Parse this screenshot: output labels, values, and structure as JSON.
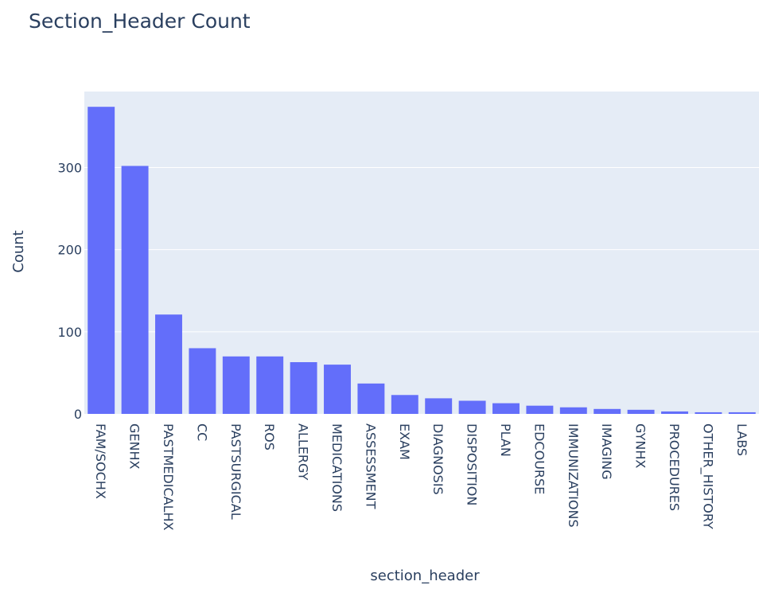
{
  "chart_data": {
    "type": "bar",
    "title": "Section_Header Count",
    "xlabel": "section_header",
    "ylabel": "Count",
    "categories": [
      "FAM/SOCHX",
      "GENHX",
      "PASTMEDICALHX",
      "CC",
      "PASTSURGICAL",
      "ROS",
      "ALLERGY",
      "MEDICATIONS",
      "ASSESSMENT",
      "EXAM",
      "DIAGNOSIS",
      "DISPOSITION",
      "PLAN",
      "EDCOURSE",
      "IMMUNIZATIONS",
      "IMAGING",
      "GYNHX",
      "PROCEDURES",
      "OTHER_HISTORY",
      "LABS"
    ],
    "values": [
      374,
      302,
      121,
      80,
      70,
      70,
      63,
      60,
      37,
      23,
      19,
      16,
      13,
      10,
      8,
      6,
      5,
      3,
      2,
      2
    ],
    "ylim": [
      0,
      392.6
    ],
    "yticks": [
      0,
      100,
      200,
      300
    ],
    "grid": true,
    "colors": {
      "bar": "#636efa",
      "plot_background": "#e5ecf6",
      "grid": "#ffffff",
      "text": "#2a3f5f"
    }
  }
}
